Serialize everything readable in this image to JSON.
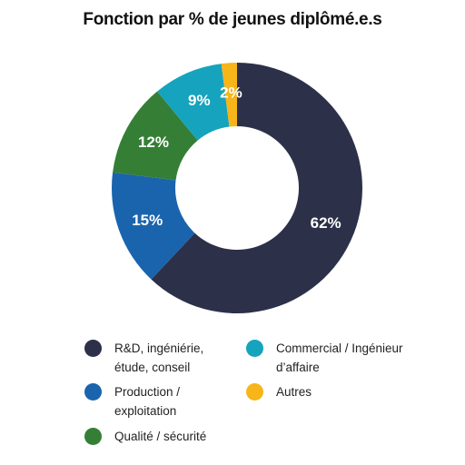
{
  "chart_data": {
    "type": "pie",
    "title": "Fonction par % de jeunes diplômé.e.s",
    "categories": [
      "R&D, ingéniérie,\nétude, conseil",
      "Production /\nexploitation",
      "Qualité / sécurité",
      "Commercial / Ingénieur\nd’affaire",
      "Autres"
    ],
    "slice_order": [
      "R&D, ingéniérie,\nétude, conseil",
      "Production /\nexploitation",
      "Qualité / sécurité",
      "Commercial / Ingénieur\nd’affaire",
      "Autres"
    ],
    "values": [
      62,
      15,
      12,
      9,
      2
    ],
    "labels": [
      "62%",
      "15%",
      "12%",
      "9%",
      "2%"
    ],
    "colors": [
      "#2c3049",
      "#1a64ad",
      "#347f35",
      "#16a3bd",
      "#f7b519"
    ],
    "donut": true,
    "legend_position": "bottom"
  }
}
